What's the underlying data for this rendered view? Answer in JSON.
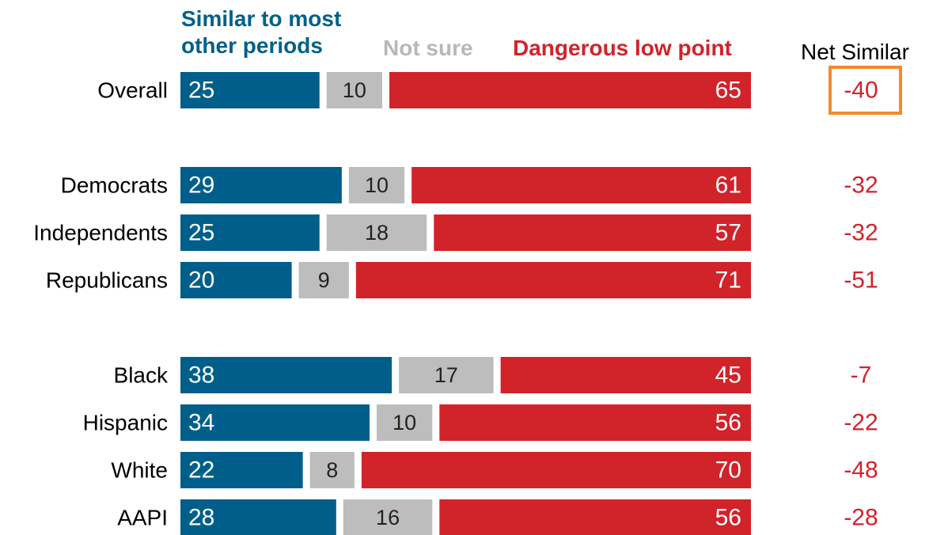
{
  "legend": {
    "similar": "Similar to most other periods",
    "not_sure": "Not sure",
    "dangerous": "Dangerous low point"
  },
  "net_header": "Net Similar",
  "colors": {
    "similar": "#005f8a",
    "not_sure": "#bdbdbd",
    "dangerous": "#d1232a",
    "net_text": "#d1232a",
    "highlight_box": "#f08a2c"
  },
  "chart_data": {
    "type": "bar",
    "stacked": true,
    "orientation": "horizontal",
    "categories": [
      "Overall",
      "Democrats",
      "Independents",
      "Republicans",
      "Black",
      "Hispanic",
      "White",
      "AAPI"
    ],
    "series": [
      {
        "name": "Similar to most other periods",
        "values": [
          25,
          29,
          25,
          20,
          38,
          34,
          22,
          28
        ]
      },
      {
        "name": "Not sure",
        "values": [
          10,
          10,
          18,
          9,
          17,
          10,
          8,
          16
        ]
      },
      {
        "name": "Dangerous low point",
        "values": [
          65,
          61,
          57,
          71,
          45,
          56,
          70,
          56
        ]
      }
    ],
    "net_similar": [
      "-40",
      "-32",
      "-32",
      "-51",
      "-7",
      "-22",
      "-48",
      "-28"
    ],
    "highlighted_category": "Overall",
    "xlim": [
      0,
      100
    ],
    "title": "",
    "xlabel": "",
    "ylabel": ""
  }
}
